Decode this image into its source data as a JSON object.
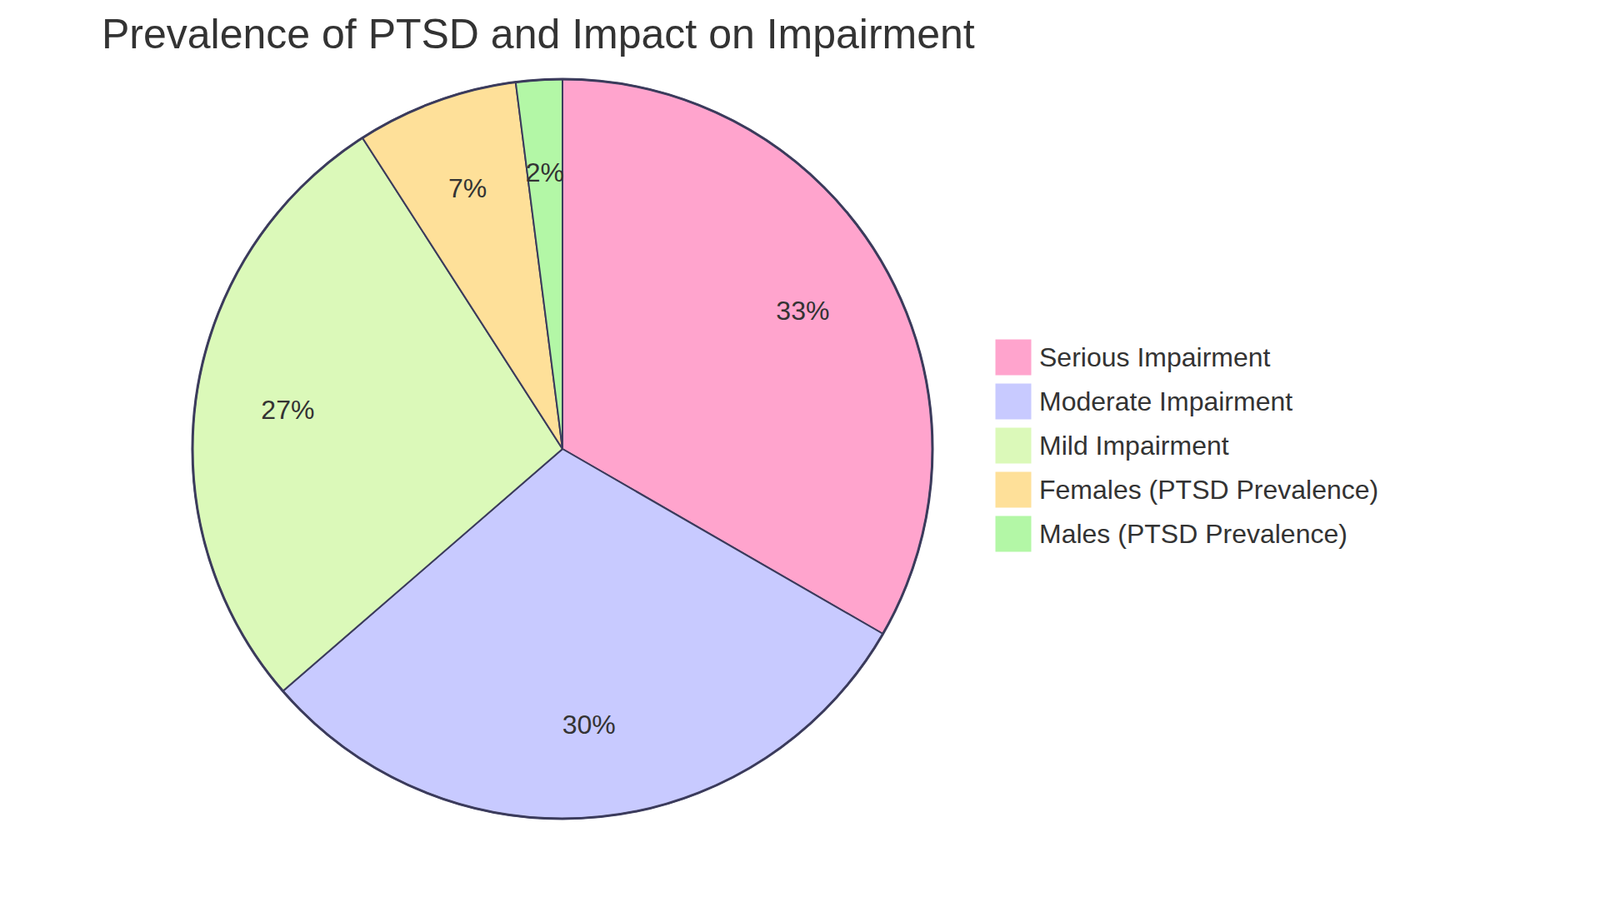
{
  "chart_data": {
    "type": "pie",
    "title": "Prevalence of PTSD and Impact on Impairment",
    "categories": [
      "Serious Impairment",
      "Moderate Impairment",
      "Mild Impairment",
      "Females (PTSD Prevalence)",
      "Males (PTSD Prevalence)"
    ],
    "values": [
      33,
      30,
      27,
      7,
      2
    ],
    "value_labels": [
      "33%",
      "30%",
      "27%",
      "7%",
      "2%"
    ],
    "colors": [
      "#ffa4cd",
      "#c8caff",
      "#dbf9b9",
      "#fee099",
      "#b3f7a6"
    ],
    "legend": "right",
    "data_labels": true
  }
}
